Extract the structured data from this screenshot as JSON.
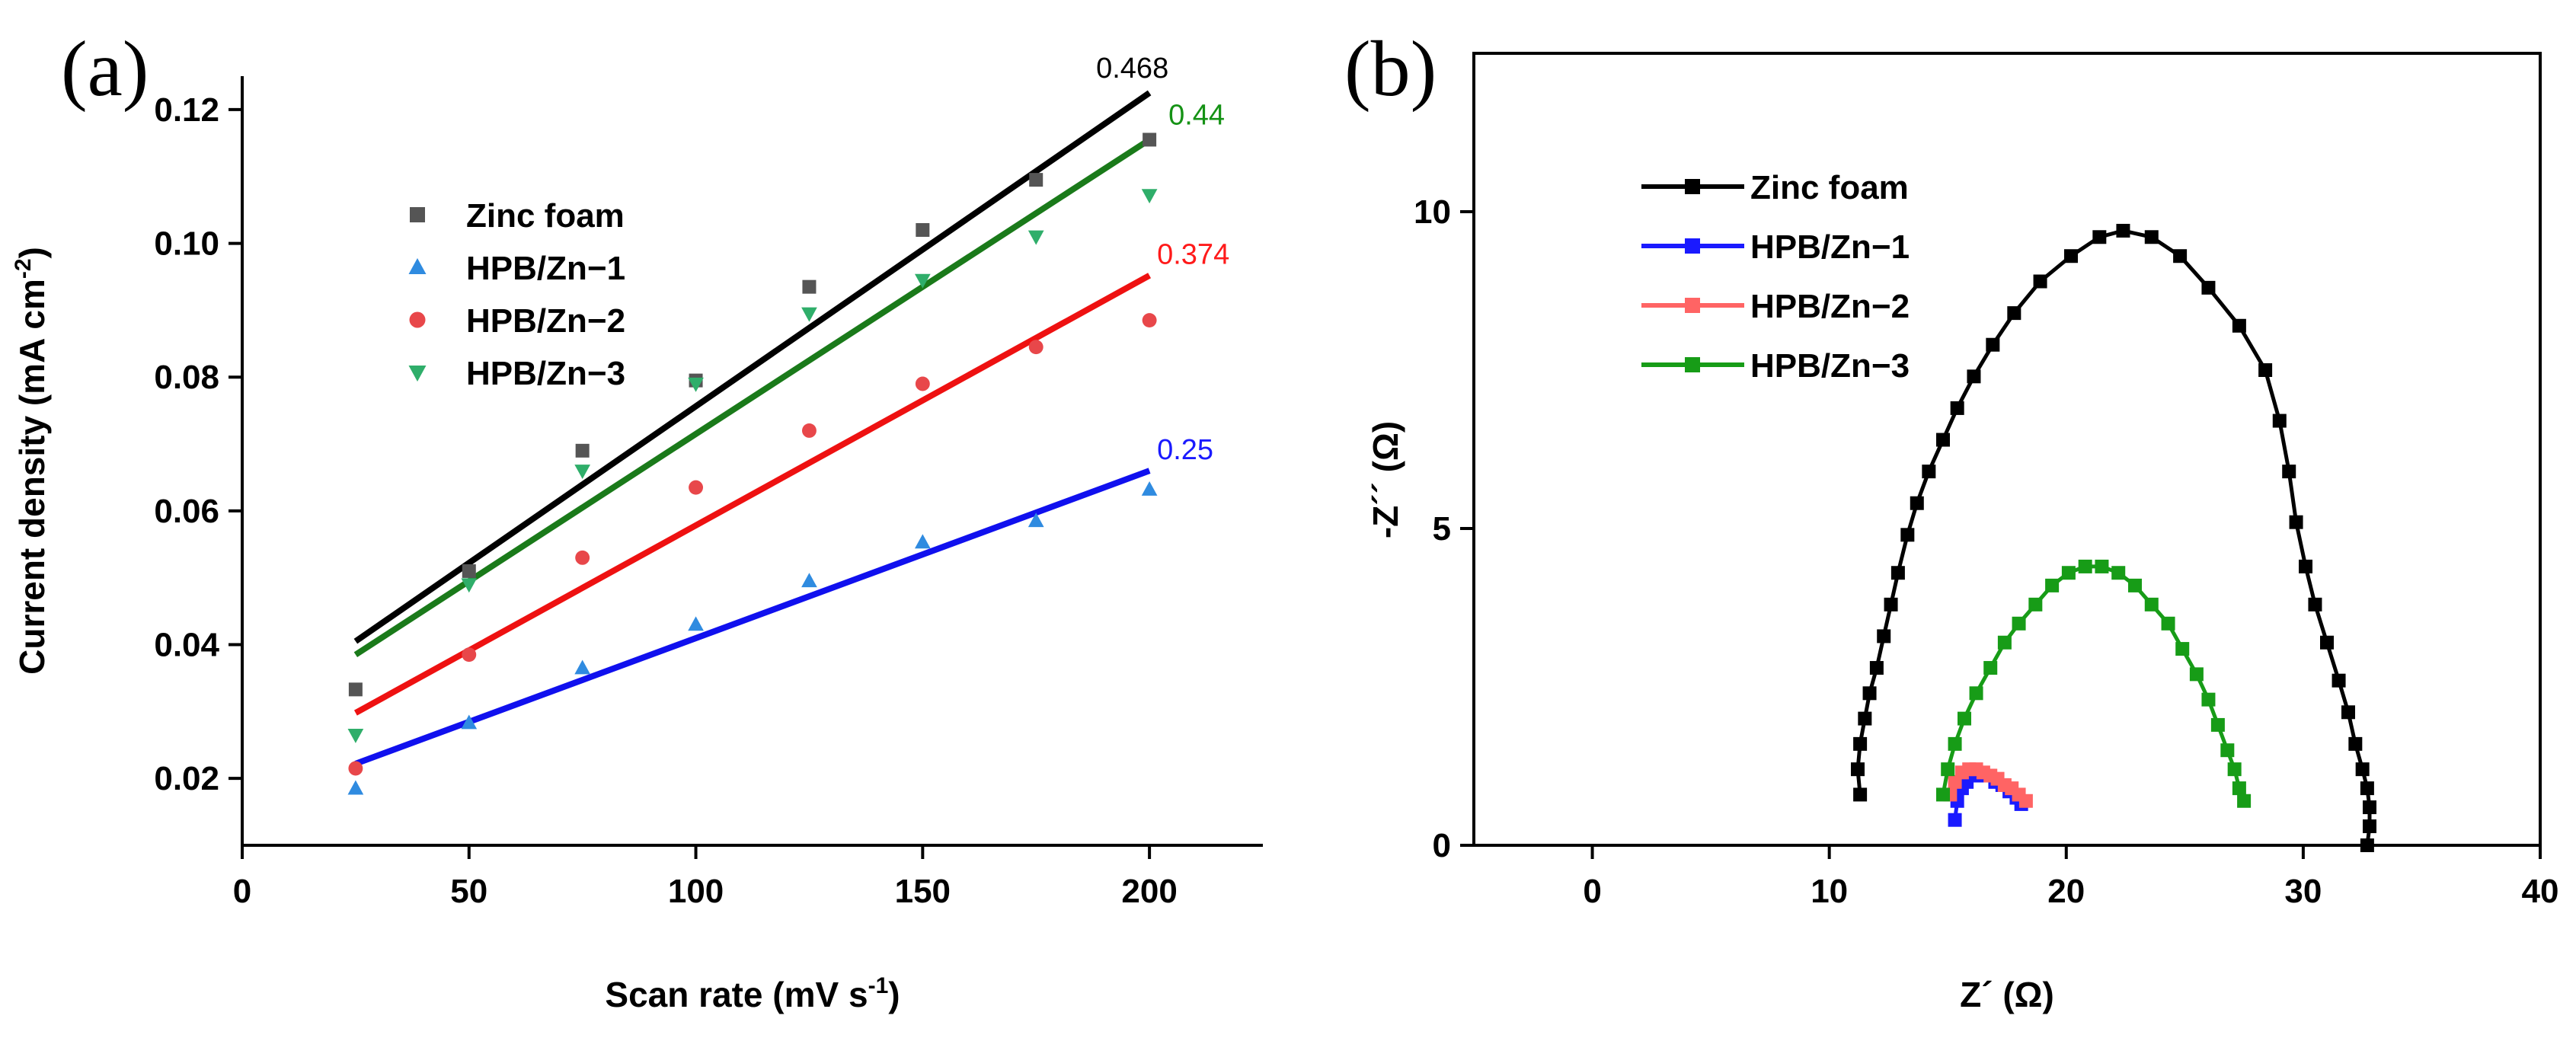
{
  "chart_data": [
    {
      "panel": "(a)",
      "type": "scatter",
      "xlabel": "Scan rate (mV s",
      "xlabel_sup": "-1",
      "xlabel_tail": ")",
      "ylabel": "Current density (mA cm",
      "ylabel_sup": "-2",
      "ylabel_tail": ")",
      "xlim": [
        0,
        225
      ],
      "ylim": [
        0.01,
        0.125
      ],
      "xticks": [
        0,
        50,
        100,
        150,
        200
      ],
      "yticks": [
        0.02,
        0.04,
        0.06,
        0.08,
        0.1,
        0.12
      ],
      "ytick_labels": [
        "0.02",
        "0.04",
        "0.06",
        "0.08",
        "0.10",
        "0.12"
      ],
      "legend_position": "upper-left",
      "x": [
        25,
        50,
        75,
        100,
        125,
        150,
        175,
        200
      ],
      "series": [
        {
          "name": "Zinc foam",
          "marker": "square",
          "color": "#555555",
          "line_color": "#000000",
          "values": [
            0.0333,
            0.051,
            0.069,
            0.0795,
            0.0935,
            0.102,
            0.1095,
            0.1155
          ],
          "fit": [
            0.0405,
            0.1225
          ],
          "slope_label": "0.468",
          "slope_color": "#000000"
        },
        {
          "name": "HPB/Zn−1",
          "marker": "triangle-up",
          "color": "#2f8be0",
          "line_color": "#1010ee",
          "values": [
            0.0185,
            0.0283,
            0.0365,
            0.043,
            0.0495,
            0.0553,
            0.0585,
            0.0632
          ],
          "fit": [
            0.0222,
            0.066
          ],
          "slope_label": "0.25",
          "slope_color": "#1a1aff"
        },
        {
          "name": "HPB/Zn−2",
          "marker": "circle",
          "color": "#e8474a",
          "line_color": "#ee1111",
          "values": [
            0.0215,
            0.0385,
            0.053,
            0.0635,
            0.072,
            0.079,
            0.0845,
            0.0885
          ],
          "fit": [
            0.0298,
            0.0952
          ],
          "slope_label": "0.374",
          "slope_color": "#ff1a1a"
        },
        {
          "name": "HPB/Zn−3",
          "marker": "triangle-down",
          "color": "#2fae6a",
          "line_color": "#1a7a1a",
          "values": [
            0.0265,
            0.049,
            0.066,
            0.079,
            0.0895,
            0.0945,
            0.101,
            0.1072
          ],
          "fit": [
            0.0385,
            0.1155
          ],
          "slope_label": "0.44",
          "slope_color": "#159215"
        }
      ]
    },
    {
      "panel": "(b)",
      "type": "line",
      "xlabel": "Z´ (Ω)",
      "ylabel": "-Z´´ (Ω)",
      "xlim": [
        -5,
        40
      ],
      "ylim": [
        0,
        12.5
      ],
      "xticks": [
        0,
        10,
        20,
        30,
        40
      ],
      "yticks": [
        0,
        5,
        10
      ],
      "legend_position": "upper-left",
      "series": [
        {
          "name": "Zinc foam",
          "color": "#000000",
          "x": [
            11.3,
            11.2,
            11.3,
            11.5,
            11.7,
            12.0,
            12.3,
            12.6,
            12.9,
            13.3,
            13.7,
            14.2,
            14.8,
            15.4,
            16.1,
            16.9,
            17.8,
            18.9,
            20.2,
            21.4,
            22.4,
            23.6,
            24.8,
            26.0,
            27.3,
            28.4,
            29.0,
            29.4,
            29.7,
            30.1,
            30.5,
            31.0,
            31.5,
            31.9,
            32.2,
            32.5,
            32.7,
            32.8,
            32.8,
            32.7
          ],
          "y": [
            0.8,
            1.2,
            1.6,
            2.0,
            2.4,
            2.8,
            3.3,
            3.8,
            4.3,
            4.9,
            5.4,
            5.9,
            6.4,
            6.9,
            7.4,
            7.9,
            8.4,
            8.9,
            9.3,
            9.6,
            9.7,
            9.6,
            9.3,
            8.8,
            8.2,
            7.5,
            6.7,
            5.9,
            5.1,
            4.4,
            3.8,
            3.2,
            2.6,
            2.1,
            1.6,
            1.2,
            0.9,
            0.6,
            0.3,
            0.0
          ]
        },
        {
          "name": "HPB/Zn−1",
          "color": "#1a1aff",
          "x": [
            15.3,
            15.4,
            15.6,
            15.8,
            16.1,
            16.4,
            16.7,
            17.0,
            17.3,
            17.6,
            17.9,
            18.1
          ],
          "y": [
            0.4,
            0.7,
            0.9,
            1.0,
            1.1,
            1.1,
            1.1,
            1.0,
            0.95,
            0.85,
            0.75,
            0.65
          ]
        },
        {
          "name": "HPB/Zn−2",
          "color": "#ff6464",
          "x": [
            15.1,
            15.3,
            15.6,
            15.9,
            16.2,
            16.5,
            16.8,
            17.1,
            17.4,
            17.7,
            18.0,
            18.3
          ],
          "y": [
            0.8,
            1.0,
            1.15,
            1.2,
            1.2,
            1.15,
            1.1,
            1.05,
            0.95,
            0.9,
            0.8,
            0.7
          ]
        },
        {
          "name": "HPB/Zn−3",
          "color": "#179c17",
          "x": [
            14.8,
            15.0,
            15.3,
            15.7,
            16.2,
            16.8,
            17.4,
            18.0,
            18.7,
            19.4,
            20.1,
            20.8,
            21.5,
            22.2,
            22.9,
            23.6,
            24.3,
            24.9,
            25.5,
            26.0,
            26.4,
            26.8,
            27.1,
            27.3,
            27.5
          ],
          "y": [
            0.8,
            1.2,
            1.6,
            2.0,
            2.4,
            2.8,
            3.2,
            3.5,
            3.8,
            4.1,
            4.3,
            4.4,
            4.4,
            4.3,
            4.1,
            3.8,
            3.5,
            3.1,
            2.7,
            2.3,
            1.9,
            1.5,
            1.2,
            0.9,
            0.7
          ]
        }
      ]
    }
  ]
}
